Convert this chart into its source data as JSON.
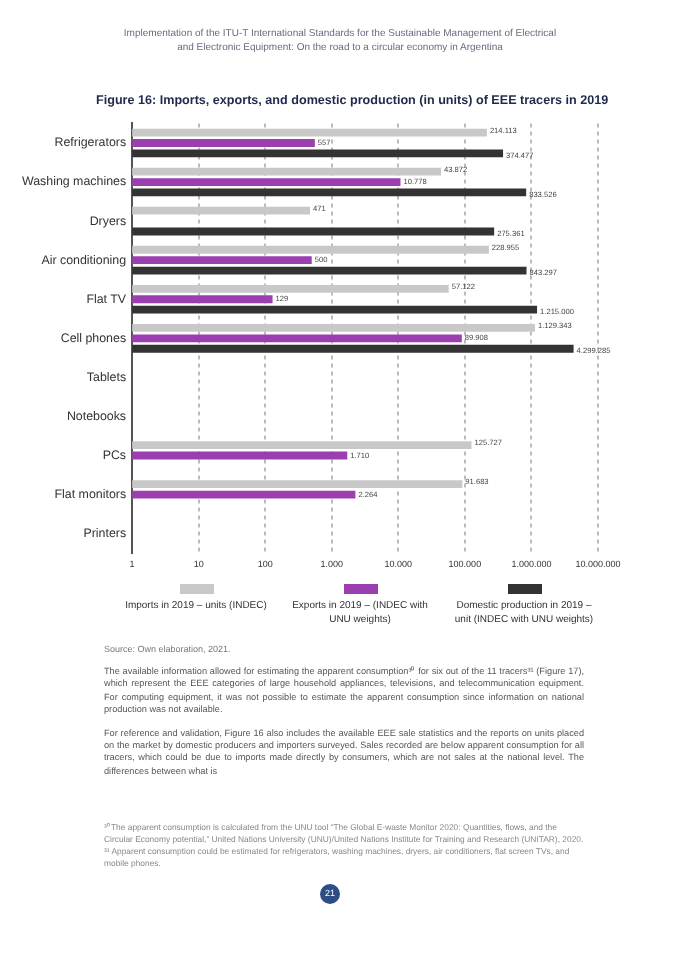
{
  "chart_data": {
    "type": "bar",
    "orientation": "horizontal",
    "title": "Figure 16: Imports, exports, and domestic production (in units) of EEE tracers in 2019",
    "categories": [
      "Refrigerators",
      "Washing machines",
      "Dryers",
      "Air conditioning",
      "Flat TV",
      "Cell phones",
      "Tablets",
      "Notebooks",
      "PCs",
      "Flat monitors",
      "Printers"
    ],
    "series": [
      {
        "name": "Imports in 2019 – units (INDEC)",
        "color": "#c8c8c8",
        "values": [
          214113,
          43872,
          471,
          228955,
          57122,
          1129343,
          null,
          null,
          125727,
          91683,
          null
        ],
        "value_labels": [
          "214.113",
          "43.872",
          "471",
          "228.955",
          "57.122",
          "1.129.343",
          null,
          null,
          "125.727",
          "91.683",
          null
        ]
      },
      {
        "name": "Exports in 2019 – (INDEC with UNU weights)",
        "color": "#9b3fb0",
        "values": [
          557,
          10778,
          null,
          500,
          129,
          89908,
          null,
          null,
          1710,
          2264,
          null
        ],
        "value_labels": [
          "557",
          "10.778",
          null,
          "500",
          "129",
          "89.908",
          null,
          null,
          "1.710",
          "2.264",
          null
        ]
      },
      {
        "name": "Domestic production in 2019 – unit (INDEC with UNU weights)",
        "color": "#333333",
        "values": [
          374477,
          833526,
          275361,
          843297,
          1215000,
          4299285,
          null,
          null,
          null,
          null,
          null
        ],
        "value_labels": [
          "374.477",
          "833.526",
          "275.361",
          "843.297",
          "1.215.000",
          "4.299.285",
          null,
          null,
          null,
          null,
          null
        ]
      }
    ],
    "log": "x",
    "xlim": [
      1,
      10000000
    ],
    "xticks": [
      1,
      10,
      100,
      {
        "value": 1000,
        "label": "1.000"
      },
      {
        "value": 10000,
        "label": "10.000"
      },
      {
        "value": 100000,
        "label": "100.000"
      },
      {
        "value": 1000000,
        "label": "1.000.000"
      },
      {
        "value": 10000000,
        "label": "10.000.000"
      }
    ],
    "grid": "x",
    "legend": "bottom",
    "annotations": [
      "Implementation of the ITU-T International Standards for the Sustainable Management of Electrical and Electronic Equipment: On the road to a circular economy in Argentina",
      "Source: Own elaboration, 2021.",
      "The available information allowed for estimating the apparent consumption³⁰ for six out of the 11 tracers³¹ (Figure 17), which represent the EEE categories of large household appliances, televisions, and telecommunication equipment. For computing equipment, it was not possible to estimate the apparent consumption since information on national production was not available.",
      "For reference and validation, Figure 16 also includes the available EEE sale statistics and the reports on units placed on the market by domestic producers and importers surveyed. Sales recorded are below apparent consumption for all tracers, which could be due to imports made directly by consumers, which are not sales at the national level. The differences between what is",
      "³⁰ The apparent consumption is calculated from the UNU tool “The Global E-waste Monitor 2020: Quantities, flows, and the Circular Economy potential,” United Nations University (UNU)/United Nations Institute for Training and Research (UNITAR), 2020.",
      "³¹ Apparent consumption could be estimated for refrigerators, washing machines, dryers, air conditioners, flat screen TVs, and mobile phones.",
      "21"
    ]
  }
}
